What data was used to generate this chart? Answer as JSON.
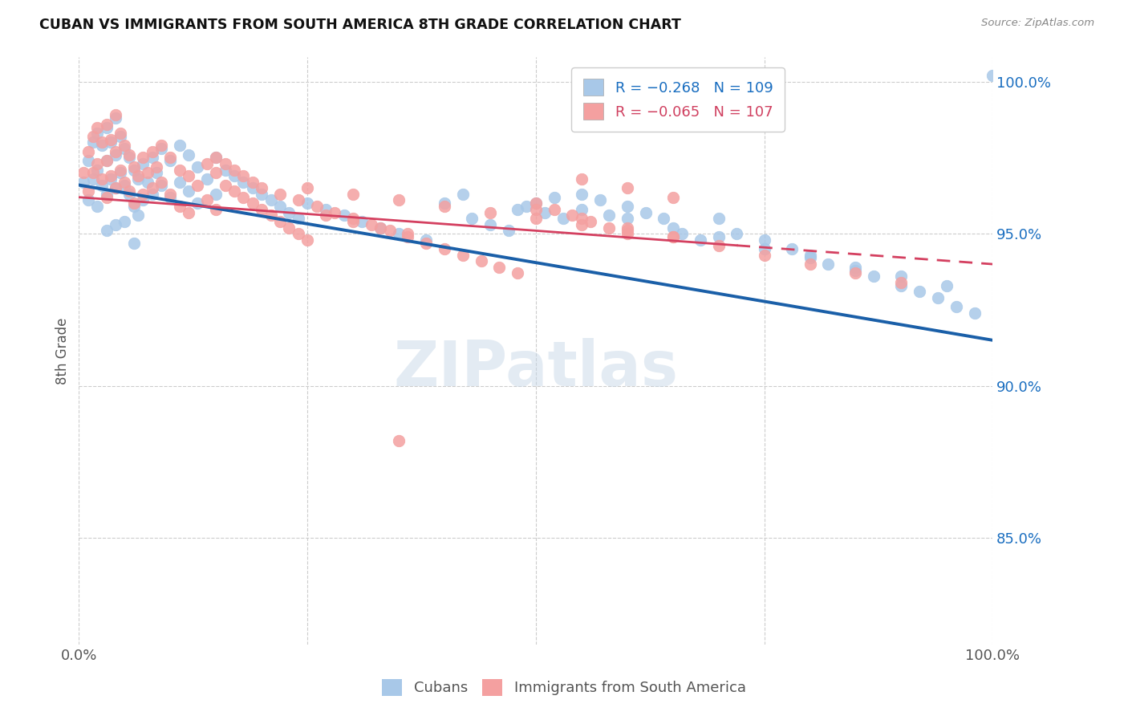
{
  "title": "CUBAN VS IMMIGRANTS FROM SOUTH AMERICA 8TH GRADE CORRELATION CHART",
  "source": "Source: ZipAtlas.com",
  "ylabel": "8th Grade",
  "watermark": "ZIPatlas",
  "legend_blue_label": "R = −0.268   N = 109",
  "legend_pink_label": "R = −0.065   N = 107",
  "legend_cubans": "Cubans",
  "legend_immigrants": "Immigrants from South America",
  "blue_color": "#a8c8e8",
  "pink_color": "#f4a0a0",
  "blue_line_color": "#1a5fa8",
  "pink_line_color": "#d44060",
  "xlim": [
    0.0,
    1.0
  ],
  "ylim": [
    0.815,
    1.008
  ],
  "yticks": [
    0.85,
    0.9,
    0.95,
    1.0
  ],
  "ytick_labels": [
    "85.0%",
    "90.0%",
    "95.0%",
    "100.0%"
  ],
  "blue_line_x0": 0.0,
  "blue_line_y0": 0.966,
  "blue_line_x1": 1.0,
  "blue_line_y1": 0.915,
  "pink_line_x0": 0.0,
  "pink_line_y0": 0.962,
  "pink_line_x1": 1.0,
  "pink_line_y1": 0.94,
  "blue_scatter_x": [
    0.005,
    0.01,
    0.01,
    0.015,
    0.015,
    0.02,
    0.02,
    0.02,
    0.025,
    0.025,
    0.03,
    0.03,
    0.03,
    0.03,
    0.035,
    0.035,
    0.04,
    0.04,
    0.04,
    0.04,
    0.045,
    0.045,
    0.05,
    0.05,
    0.05,
    0.055,
    0.055,
    0.06,
    0.06,
    0.06,
    0.065,
    0.065,
    0.07,
    0.07,
    0.075,
    0.08,
    0.08,
    0.085,
    0.09,
    0.09,
    0.1,
    0.1,
    0.11,
    0.11,
    0.12,
    0.12,
    0.13,
    0.13,
    0.14,
    0.15,
    0.15,
    0.16,
    0.17,
    0.18,
    0.19,
    0.2,
    0.21,
    0.22,
    0.23,
    0.24,
    0.25,
    0.27,
    0.29,
    0.31,
    0.33,
    0.35,
    0.38,
    0.4,
    0.43,
    0.45,
    0.47,
    0.49,
    0.51,
    0.53,
    0.55,
    0.57,
    0.6,
    0.62,
    0.64,
    0.66,
    0.68,
    0.7,
    0.72,
    0.75,
    0.78,
    0.8,
    0.82,
    0.85,
    0.87,
    0.9,
    0.92,
    0.94,
    0.96,
    0.98,
    1.0,
    0.5,
    0.48,
    0.52,
    0.55,
    0.6,
    0.65,
    0.7,
    0.75,
    0.8,
    0.85,
    0.9,
    0.95,
    0.42,
    0.58
  ],
  "blue_scatter_y": [
    0.967,
    0.974,
    0.961,
    0.98,
    0.968,
    0.983,
    0.971,
    0.959,
    0.979,
    0.966,
    0.985,
    0.974,
    0.963,
    0.951,
    0.98,
    0.968,
    0.988,
    0.976,
    0.965,
    0.953,
    0.982,
    0.97,
    0.978,
    0.966,
    0.954,
    0.975,
    0.963,
    0.971,
    0.959,
    0.947,
    0.968,
    0.956,
    0.973,
    0.961,
    0.967,
    0.975,
    0.963,
    0.97,
    0.978,
    0.966,
    0.974,
    0.962,
    0.979,
    0.967,
    0.976,
    0.964,
    0.972,
    0.96,
    0.968,
    0.975,
    0.963,
    0.971,
    0.969,
    0.967,
    0.965,
    0.963,
    0.961,
    0.959,
    0.957,
    0.955,
    0.96,
    0.958,
    0.956,
    0.954,
    0.952,
    0.95,
    0.948,
    0.96,
    0.955,
    0.953,
    0.951,
    0.959,
    0.957,
    0.955,
    0.963,
    0.961,
    0.959,
    0.957,
    0.955,
    0.95,
    0.948,
    0.955,
    0.95,
    0.948,
    0.945,
    0.943,
    0.94,
    0.938,
    0.936,
    0.933,
    0.931,
    0.929,
    0.926,
    0.924,
    1.002,
    0.96,
    0.958,
    0.962,
    0.958,
    0.955,
    0.952,
    0.949,
    0.945,
    0.942,
    0.939,
    0.936,
    0.933,
    0.963,
    0.956
  ],
  "pink_scatter_x": [
    0.005,
    0.01,
    0.01,
    0.015,
    0.015,
    0.02,
    0.02,
    0.025,
    0.025,
    0.03,
    0.03,
    0.03,
    0.035,
    0.035,
    0.04,
    0.04,
    0.04,
    0.045,
    0.045,
    0.05,
    0.05,
    0.055,
    0.055,
    0.06,
    0.06,
    0.065,
    0.07,
    0.07,
    0.075,
    0.08,
    0.08,
    0.085,
    0.09,
    0.09,
    0.1,
    0.1,
    0.11,
    0.11,
    0.12,
    0.12,
    0.13,
    0.14,
    0.14,
    0.15,
    0.15,
    0.16,
    0.17,
    0.18,
    0.19,
    0.2,
    0.21,
    0.22,
    0.23,
    0.24,
    0.25,
    0.27,
    0.3,
    0.33,
    0.36,
    0.15,
    0.16,
    0.17,
    0.18,
    0.19,
    0.2,
    0.22,
    0.24,
    0.26,
    0.28,
    0.3,
    0.32,
    0.34,
    0.36,
    0.38,
    0.4,
    0.42,
    0.44,
    0.46,
    0.48,
    0.5,
    0.52,
    0.54,
    0.56,
    0.58,
    0.6,
    0.35,
    0.5,
    0.55,
    0.6,
    0.65,
    0.7,
    0.75,
    0.8,
    0.85,
    0.9,
    0.55,
    0.6,
    0.65,
    0.25,
    0.3,
    0.35,
    0.4,
    0.45,
    0.5,
    0.55,
    0.6,
    0.65
  ],
  "pink_scatter_y": [
    0.97,
    0.977,
    0.964,
    0.982,
    0.97,
    0.985,
    0.973,
    0.98,
    0.968,
    0.986,
    0.974,
    0.962,
    0.981,
    0.969,
    0.989,
    0.977,
    0.965,
    0.983,
    0.971,
    0.979,
    0.967,
    0.976,
    0.964,
    0.972,
    0.96,
    0.969,
    0.975,
    0.963,
    0.97,
    0.977,
    0.965,
    0.972,
    0.979,
    0.967,
    0.975,
    0.963,
    0.971,
    0.959,
    0.969,
    0.957,
    0.966,
    0.973,
    0.961,
    0.97,
    0.958,
    0.966,
    0.964,
    0.962,
    0.96,
    0.958,
    0.956,
    0.954,
    0.952,
    0.95,
    0.948,
    0.956,
    0.954,
    0.952,
    0.95,
    0.975,
    0.973,
    0.971,
    0.969,
    0.967,
    0.965,
    0.963,
    0.961,
    0.959,
    0.957,
    0.955,
    0.953,
    0.951,
    0.949,
    0.947,
    0.945,
    0.943,
    0.941,
    0.939,
    0.937,
    0.96,
    0.958,
    0.956,
    0.954,
    0.952,
    0.95,
    0.882,
    0.958,
    0.955,
    0.952,
    0.949,
    0.946,
    0.943,
    0.94,
    0.937,
    0.934,
    0.968,
    0.965,
    0.962,
    0.965,
    0.963,
    0.961,
    0.959,
    0.957,
    0.955,
    0.953,
    0.951,
    0.949
  ]
}
